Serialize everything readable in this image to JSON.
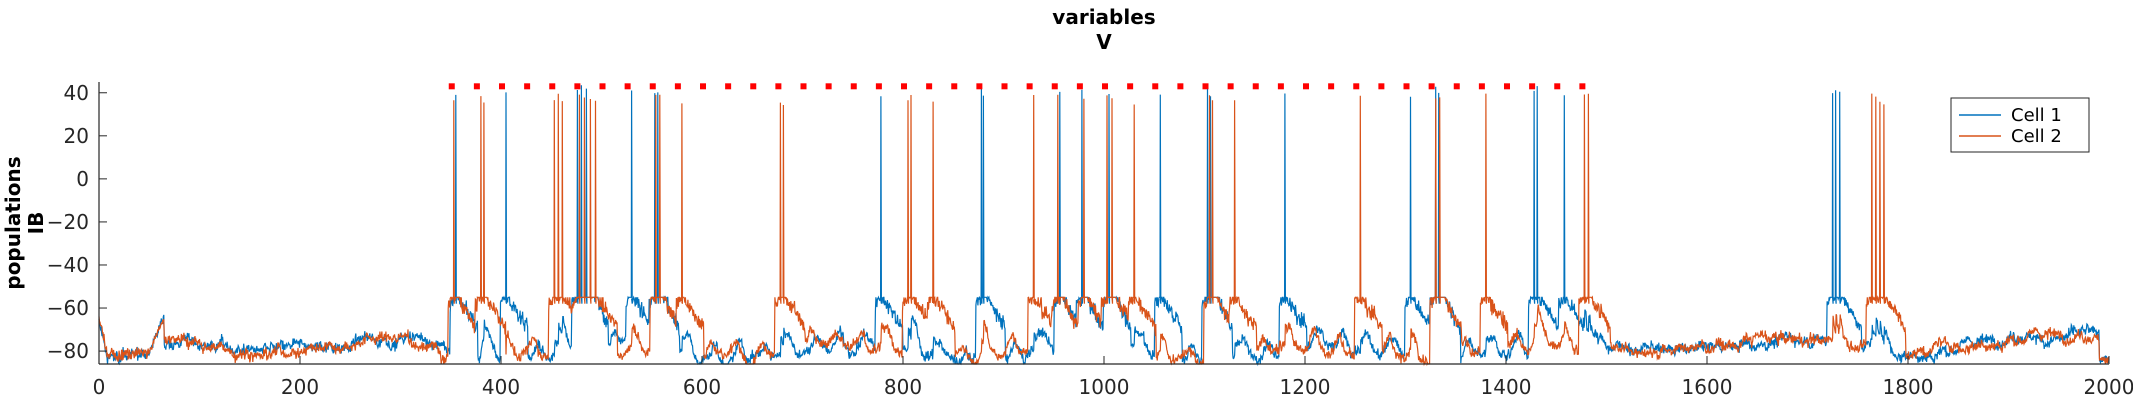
{
  "chart_data": {
    "type": "line",
    "title": [
      "variables",
      "V"
    ],
    "ylabel": [
      "populations",
      "IB"
    ],
    "xlabel": "",
    "xlim": [
      0,
      2000
    ],
    "ylim": [
      -86,
      45
    ],
    "x_ticks": [
      0,
      200,
      400,
      600,
      800,
      1000,
      1200,
      1400,
      1600,
      1800,
      2000
    ],
    "y_ticks": [
      -80,
      -60,
      -40,
      -20,
      0,
      20,
      40
    ],
    "legend_position": "top-right",
    "grid": false,
    "baseline_mean": -77,
    "series": [
      {
        "name": "Cell 1",
        "color": "#0072BD",
        "spike_times": [
          355,
          405,
          476,
          480,
          485,
          530,
          553,
          556,
          778,
          878,
          880,
          956,
          978,
          1005,
          1056,
          1103,
          1106,
          1180,
          1305,
          1330,
          1333,
          1428,
          1431,
          1458,
          1725,
          1728,
          1732
        ],
        "spike_peak": 44
      },
      {
        "name": "Cell 2",
        "color": "#D95319",
        "spike_times": [
          353,
          380,
          383,
          453,
          457,
          461,
          478,
          483,
          489,
          494,
          554,
          558,
          580,
          678,
          681,
          805,
          808,
          830,
          930,
          954,
          980,
          1003,
          1008,
          1030,
          1105,
          1108,
          1130,
          1255,
          1330,
          1334,
          1380,
          1478,
          1482,
          1764,
          1768,
          1772,
          1776
        ],
        "spike_peak": 40
      }
    ],
    "markers": {
      "color": "#FF0000",
      "y": 43,
      "x_start": 351,
      "x_end": 1479,
      "spacing": 25
    }
  }
}
